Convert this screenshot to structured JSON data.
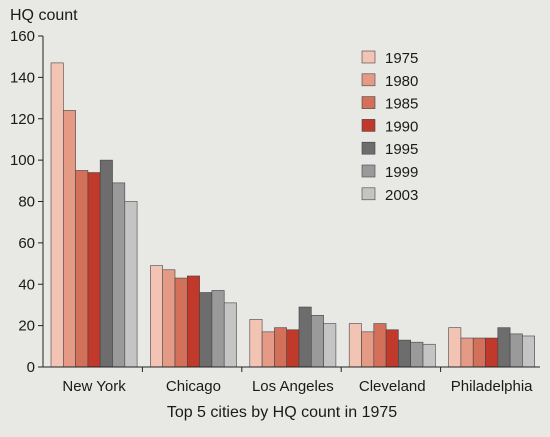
{
  "chart_data": {
    "type": "bar",
    "ylabel": "HQ count",
    "xlabel": "Top 5 cities by HQ count in 1975",
    "ylim": [
      0,
      160
    ],
    "yticks": [
      0,
      20,
      40,
      60,
      80,
      100,
      120,
      140,
      160
    ],
    "grid": false,
    "legend_position": "top-right",
    "categories": [
      "New York",
      "Chicago",
      "Los Angeles",
      "Cleveland",
      "Philadelphia"
    ],
    "series": [
      {
        "name": "1975",
        "color": "#f3c3b4",
        "values": [
          147,
          49,
          23,
          21,
          19
        ]
      },
      {
        "name": "1980",
        "color": "#e49a84",
        "values": [
          124,
          47,
          17,
          17,
          14
        ]
      },
      {
        "name": "1985",
        "color": "#d2705a",
        "values": [
          95,
          43,
          19,
          21,
          14
        ]
      },
      {
        "name": "1990",
        "color": "#c0392b",
        "values": [
          94,
          44,
          18,
          18,
          14
        ]
      },
      {
        "name": "1995",
        "color": "#6d6d6d",
        "values": [
          100,
          36,
          29,
          13,
          19
        ]
      },
      {
        "name": "1999",
        "color": "#9a9a9a",
        "values": [
          89,
          37,
          25,
          12,
          16
        ]
      },
      {
        "name": "2003",
        "color": "#c4c4c4",
        "values": [
          80,
          31,
          21,
          11,
          15
        ]
      }
    ]
  }
}
